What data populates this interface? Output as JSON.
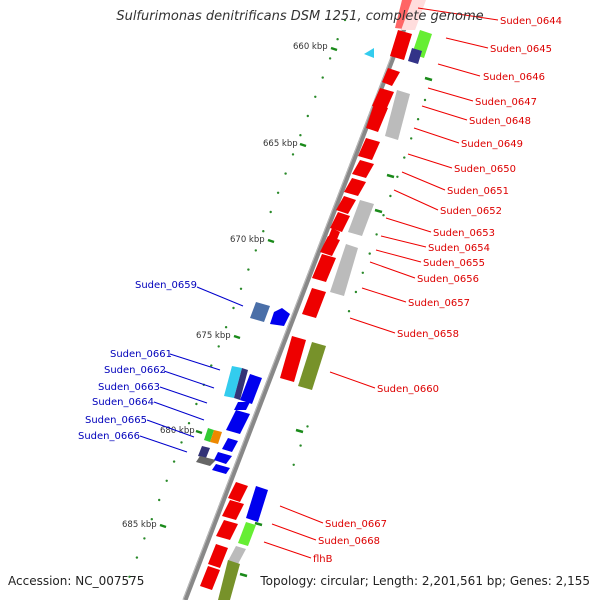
{
  "title": "Sulfurimonas denitrificans DSM 1251, complete genome",
  "footer": {
    "accession": "Accession: NC_007575",
    "topology": "Topology: circular; Length: 2,201,561 bp; Genes: 2,155"
  },
  "scale_ticks": [
    "660 kbp",
    "665 kbp",
    "670 kbp",
    "675 kbp",
    "680 kbp",
    "685 kbp"
  ],
  "colors": {
    "forward_gene": "#ff0000",
    "reverse_gene": "#0000ff",
    "backbone": "#808080",
    "gc_marker": "#1a8a1a",
    "reverse_label": "#0000bb",
    "forward_label": "#dd0000"
  },
  "labels_right": [
    "Suden_0644",
    "Suden_0645",
    "Suden_0646",
    "Suden_0647",
    "Suden_0648",
    "Suden_0649",
    "Suden_0650",
    "Suden_0651",
    "Suden_0652",
    "Suden_0653",
    "Suden_0654",
    "Suden_0655",
    "Suden_0656",
    "Suden_0657",
    "Suden_0658",
    "Suden_0660",
    "Suden_0667",
    "Suden_0668",
    "flhB"
  ],
  "labels_left": [
    "Suden_0659",
    "Suden_0661",
    "Suden_0662",
    "Suden_0663",
    "Suden_0664",
    "Suden_0665",
    "Suden_0666"
  ]
}
